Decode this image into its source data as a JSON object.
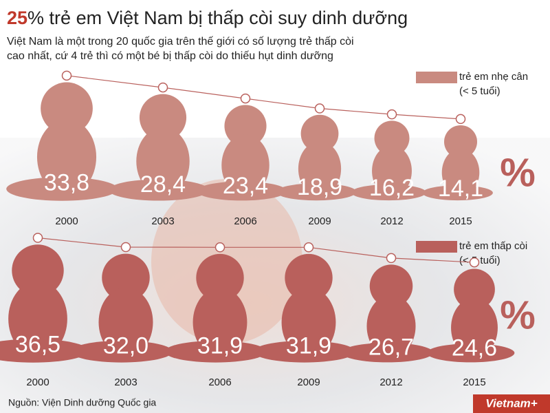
{
  "header": {
    "title_highlight": "25",
    "title": "% trẻ em Việt Nam bị thấp còi suy dinh dưỡng",
    "subtitle_lines": [
      "Việt Nam là một trong 20 quốc gia trên thế giới có số lượng trẻ thấp còi",
      "cao nhất, cứ 4 trẻ thì có một bé bị thấp còi do thiếu hụt dinh dưỡng"
    ]
  },
  "chart_data": [
    {
      "type": "pictograph",
      "unit": "%",
      "categories": [
        "2000",
        "2003",
        "2006",
        "2009",
        "2012",
        "2015"
      ],
      "series": [
        {
          "name": "trẻ em nhẹ cân",
          "note": "(< 5 tuổi)",
          "color": "#c98a80",
          "values": [
            33.8,
            28.4,
            23.4,
            18.9,
            16.2,
            14.1
          ],
          "value_labels": [
            "33,8",
            "28,4",
            "23,4",
            "18,9",
            "16,2",
            "14,1"
          ]
        }
      ]
    },
    {
      "type": "pictograph",
      "unit": "%",
      "categories": [
        "2000",
        "2003",
        "2006",
        "2009",
        "2012",
        "2015"
      ],
      "series": [
        {
          "name": "trẻ em thấp còi",
          "note": "(< 5 tuổi)",
          "color": "#b9605c",
          "values": [
            36.5,
            32.0,
            31.9,
            31.9,
            26.7,
            24.6
          ],
          "value_labels": [
            "36,5",
            "32,0",
            "31,9",
            "31,9",
            "26,7",
            "24,6"
          ]
        }
      ]
    }
  ],
  "footer": {
    "source": "Nguồn: Viện Dinh dưỡng Quốc gia",
    "logo": "Vietnam+"
  }
}
